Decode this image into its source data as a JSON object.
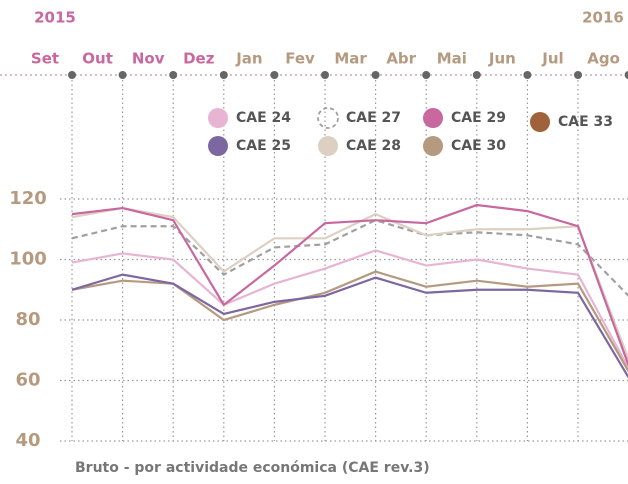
{
  "chart_data": {
    "type": "line",
    "annotations": [
      {
        "text": "2015",
        "color": "#c9679f"
      },
      {
        "text": "2016",
        "color": "#b59a80"
      }
    ],
    "categories": [
      "Set",
      "Out",
      "Nov",
      "Dez",
      "Jan",
      "Fev",
      "Mar",
      "Abr",
      "Mai",
      "Jun",
      "Jul",
      "Ago"
    ],
    "category_colors": [
      "#c9679f",
      "#c9679f",
      "#c9679f",
      "#c9679f",
      "#b59a80",
      "#b59a80",
      "#b59a80",
      "#b59a80",
      "#b59a80",
      "#b59a80",
      "#b59a80",
      "#b59a80"
    ],
    "series": [
      {
        "name": "CAE 24",
        "color": "#e8b4d4",
        "values": [
          99,
          102,
          100,
          85,
          92,
          97,
          103,
          98,
          100,
          97,
          95,
          64
        ]
      },
      {
        "name": "CAE 25",
        "color": "#7d67a0",
        "values": [
          90,
          95,
          92,
          82,
          86,
          88,
          94,
          89,
          90,
          90,
          89,
          61
        ]
      },
      {
        "name": "CAE 27",
        "color": "#a0a0a0",
        "dashed": true,
        "values": [
          107,
          111,
          111,
          95,
          104,
          105,
          113,
          108,
          109,
          108,
          105,
          88
        ]
      },
      {
        "name": "CAE 28",
        "color": "#ddd0c3",
        "values": [
          114,
          117,
          114,
          96,
          107,
          107,
          115,
          108,
          110,
          110,
          111,
          67
        ]
      },
      {
        "name": "CAE 29",
        "color": "#c9679f",
        "values": [
          115,
          117,
          113,
          85,
          98,
          112,
          113,
          112,
          118,
          116,
          111,
          65
        ]
      },
      {
        "name": "CAE 30",
        "color": "#b59a80",
        "values": [
          90,
          93,
          92,
          80,
          85,
          89,
          96,
          91,
          93,
          91,
          92,
          63
        ]
      },
      {
        "name": "CAE 33",
        "color": "#a0623a",
        "values": [
          null,
          null,
          null,
          null,
          null,
          null,
          null,
          null,
          null,
          null,
          null,
          null
        ]
      }
    ],
    "ylim": [
      40,
      120
    ],
    "yticks": [
      40,
      60,
      80,
      100,
      120
    ],
    "grid": true,
    "caption": "Bruto - por actividade económica (CAE rev.3)"
  }
}
